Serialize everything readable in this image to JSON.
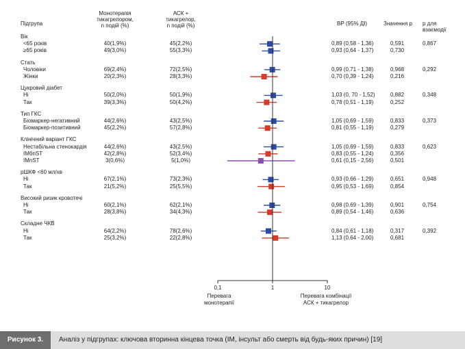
{
  "headers": {
    "subgroup": "Підгрупа",
    "mono": [
      "Монотерапія",
      "тикагрелором,",
      "n подій (%)"
    ],
    "asa": [
      "АСК +",
      "тикагрелор,",
      "n подій (%)"
    ],
    "hr": "ВР (95% ДІ)",
    "p": "Значення р",
    "pint": [
      "р для",
      "взаємодії"
    ]
  },
  "axis": {
    "ticks": [
      {
        "value": 0.1,
        "label": "0,1"
      },
      {
        "value": 1,
        "label": "1"
      },
      {
        "value": 10,
        "label": "10"
      }
    ],
    "left_label": [
      "Перевага",
      "монотерапії"
    ],
    "right_label": [
      "Перевага комбінації",
      "АСК + тикагрелор"
    ]
  },
  "colors": {
    "blue": "#2b4aa0",
    "red": "#d63a2a",
    "purple": "#8e4fb0",
    "axis": "#333333"
  },
  "chart_data": {
    "type": "forest",
    "scale": "log",
    "xlim": [
      0.1,
      10
    ],
    "reference_line": 1,
    "groups": [
      {
        "title": "Вік",
        "p_interaction": "0,867",
        "rows": [
          {
            "label": "<65 років",
            "mono": "40(1,9%)",
            "asa": "45(2,2%)",
            "hr_text": "0,89  (0,58 - 1,36)",
            "p": "0,591",
            "hr": 0.89,
            "lo": 0.58,
            "hi": 1.36,
            "color": "blue"
          },
          {
            "label": "≥65 років",
            "mono": "49(3,0%)",
            "asa": "55(3,3%)",
            "hr_text": "0,93  (0,64 - 1,37)",
            "p": "0,730",
            "hr": 0.93,
            "lo": 0.64,
            "hi": 1.37,
            "color": "blue"
          }
        ]
      },
      {
        "title": "Стать",
        "p_interaction": "0,292",
        "rows": [
          {
            "label": "Чоловіки",
            "mono": "69(2,4%)",
            "asa": "72(2,5%)",
            "hr_text": "0,99  (0,71 - 1,38)",
            "p": "0,968",
            "hr": 0.99,
            "lo": 0.71,
            "hi": 1.38,
            "color": "blue"
          },
          {
            "label": "Жінки",
            "mono": "20(2,3%)",
            "asa": "28(3,3%)",
            "hr_text": "0,70  (0,39 - 1,24)",
            "p": "0,216",
            "hr": 0.7,
            "lo": 0.39,
            "hi": 1.24,
            "color": "red"
          }
        ]
      },
      {
        "title": "Цукровий діабет",
        "p_interaction": "0,348",
        "rows": [
          {
            "label": "Ні",
            "mono": "50(2,0%)",
            "asa": "50(1,9%)",
            "hr_text": "1,03  (0, 70 - 1,52)",
            "p": "0,882",
            "hr": 1.03,
            "lo": 0.7,
            "hi": 1.52,
            "color": "blue"
          },
          {
            "label": "Так",
            "mono": "39(3,3%)",
            "asa": "50(4,2%)",
            "hr_text": "0,78  (0,51 - 1,19)",
            "p": "0,252",
            "hr": 0.78,
            "lo": 0.51,
            "hi": 1.19,
            "color": "red"
          }
        ]
      },
      {
        "title": "Тип ГКС",
        "p_interaction": "0,373",
        "rows": [
          {
            "label": "Біомаркер-негативний",
            "mono": "44(2,6%)",
            "asa": "43(2,5%)",
            "hr_text": "1,05  (0,69 - 1,59)",
            "p": "0,833",
            "hr": 1.05,
            "lo": 0.69,
            "hi": 1.59,
            "color": "blue"
          },
          {
            "label": "Біомаркер-позитивний",
            "mono": "45(2,2%)",
            "asa": "57(2,8%)",
            "hr_text": "0,81  (0,55 - 1,19)",
            "p": "0,279",
            "hr": 0.81,
            "lo": 0.55,
            "hi": 1.19,
            "color": "red"
          }
        ]
      },
      {
        "title": "Клінічний варіант ГКС",
        "p_interaction": "0,623",
        "rows": [
          {
            "label": "Нестабільна стенокардія",
            "mono": "44(2,6%)",
            "asa": "43(2,5%)",
            "hr_text": "1,05  (0,69 - 1,59)",
            "p": "0,833",
            "hr": 1.05,
            "lo": 0.69,
            "hi": 1.59,
            "color": "blue"
          },
          {
            "label": "IMбnST",
            "mono": "42(2,8%)",
            "asa": "52(3,4%)",
            "hr_text": "0,83  (0,55 - 1,24)",
            "p": "0,356",
            "hr": 0.83,
            "lo": 0.55,
            "hi": 1.24,
            "color": "red"
          },
          {
            "label": "IMnST",
            "mono": "3(0,6%)",
            "asa": "5(1,0%)",
            "hr_text": "0,61  (0,15 - 2,56)",
            "p": "0,501",
            "hr": 0.61,
            "lo": 0.15,
            "hi": 2.56,
            "color": "purple"
          }
        ]
      },
      {
        "title": "рШКФ <60 мл/хв",
        "p_interaction": "0,948",
        "rows": [
          {
            "label": "Ні",
            "mono": "67(2,1%)",
            "asa": "73(2,3%)",
            "hr_text": "0,93  (0,66 - 1,29)",
            "p": "0,651",
            "hr": 0.93,
            "lo": 0.66,
            "hi": 1.29,
            "color": "blue"
          },
          {
            "label": "Так",
            "mono": "21(5,2%)",
            "asa": "25(5,5%)",
            "hr_text": "0,95  (0,53 - 1,69)",
            "p": "0,854",
            "hr": 0.95,
            "lo": 0.53,
            "hi": 1.69,
            "color": "red"
          }
        ]
      },
      {
        "title": "Високий ризик кровотечі",
        "p_interaction": "0,754",
        "rows": [
          {
            "label": "Ні",
            "mono": "60(2,1%)",
            "asa": "62(2,1%)",
            "hr_text": "0,98  (0,69 - 1,39)",
            "p": "0,901",
            "hr": 0.98,
            "lo": 0.69,
            "hi": 1.39,
            "color": "blue"
          },
          {
            "label": "Так",
            "mono": "28(3,8%)",
            "asa": "34(4,3%)",
            "hr_text": "0,89  (0,54 - 1,46)",
            "p": "0,636",
            "hr": 0.89,
            "lo": 0.54,
            "hi": 1.46,
            "color": "red"
          }
        ]
      },
      {
        "title": "Складне ЧКВ",
        "p_interaction": "0,392",
        "rows": [
          {
            "label": "Ні",
            "mono": "64(2,2%)",
            "asa": "78(2,6%)",
            "hr_text": "0,84  (0,61 - 1,18)",
            "p": "0,317",
            "hr": 0.84,
            "lo": 0.61,
            "hi": 1.18,
            "color": "blue"
          },
          {
            "label": "Так",
            "mono": "25(3,2%)",
            "asa": "22(2,8%)",
            "hr_text": "1,13  (0,64 - 2.00)",
            "p": "0,681",
            "hr": 1.13,
            "lo": 0.64,
            "hi": 2.0,
            "color": "red"
          }
        ]
      }
    ]
  },
  "caption": {
    "label": "Рисунок 3.",
    "text": "Аналіз у підгрупах: ключова вторинна кінцева точка (ІМ, інсульт або смерть від будь-яких причин) [19]"
  }
}
